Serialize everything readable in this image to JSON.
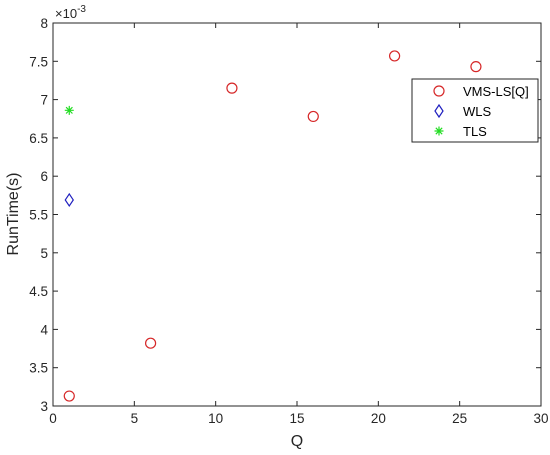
{
  "chart_data": {
    "type": "scatter",
    "xlabel": "Q",
    "ylabel": "RunTime(s)",
    "xlim": [
      0,
      30
    ],
    "ylim": [
      3,
      8
    ],
    "y_multiplier_label": "×10",
    "y_multiplier_exponent": "-3",
    "x_ticks": [
      0,
      5,
      10,
      15,
      20,
      25,
      30
    ],
    "x_tick_labels": [
      "0",
      "5",
      "10",
      "15",
      "20",
      "25",
      "30"
    ],
    "y_ticks": [
      3,
      3.5,
      4,
      4.5,
      5,
      5.5,
      6,
      6.5,
      7,
      7.5,
      8
    ],
    "y_tick_labels": [
      "3",
      "3.5",
      "4",
      "4.5",
      "5",
      "5.5",
      "6",
      "6.5",
      "7",
      "7.5",
      "8"
    ],
    "grid": false,
    "legend_position": "top-right",
    "series": [
      {
        "name": "VMS-LS[Q]",
        "marker": "circle",
        "color": "#d62728",
        "x": [
          1,
          6,
          11,
          16,
          21,
          26
        ],
        "y": [
          3.13,
          3.82,
          7.15,
          6.78,
          7.57,
          7.43
        ]
      },
      {
        "name": "WLS",
        "marker": "diamond",
        "color": "#1f1fbf",
        "x": [
          1
        ],
        "y": [
          5.69
        ]
      },
      {
        "name": "TLS",
        "marker": "asterisk",
        "color": "#22dd22",
        "x": [
          1
        ],
        "y": [
          6.86
        ]
      }
    ]
  }
}
